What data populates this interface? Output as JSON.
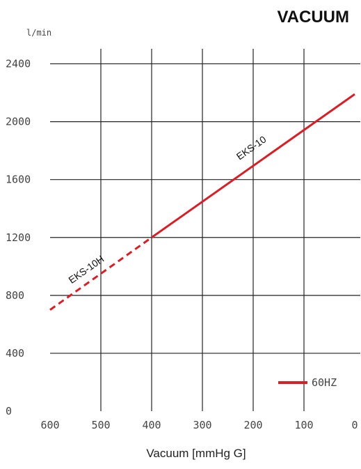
{
  "chart_data": {
    "type": "line",
    "title": "VACUUM",
    "xlabel": "Vacuum  [mmHg G]",
    "ylabel": "",
    "y_unit": "l/min",
    "x_reversed": true,
    "xlim": [
      0,
      600
    ],
    "ylim": [
      0,
      2600
    ],
    "x_ticks": [
      600,
      500,
      400,
      300,
      200,
      100,
      0
    ],
    "y_ticks": [
      0,
      400,
      800,
      1200,
      1600,
      2000,
      2400
    ],
    "grid": true,
    "legend": {
      "position": "bottom-right",
      "entries": [
        "60HZ"
      ]
    },
    "series": [
      {
        "name": "60HZ",
        "color": "#d61f26",
        "points": [
          [
            600,
            700
          ],
          [
            400,
            1200
          ],
          [
            0,
            2190
          ]
        ],
        "solid_range": [
          0,
          400
        ],
        "dashed_range": [
          400,
          600
        ]
      }
    ],
    "annotations": [
      {
        "text": "EKS-10",
        "x": 200,
        "y": 1800
      },
      {
        "text": "EKS-10H",
        "x": 525,
        "y": 960
      }
    ]
  }
}
